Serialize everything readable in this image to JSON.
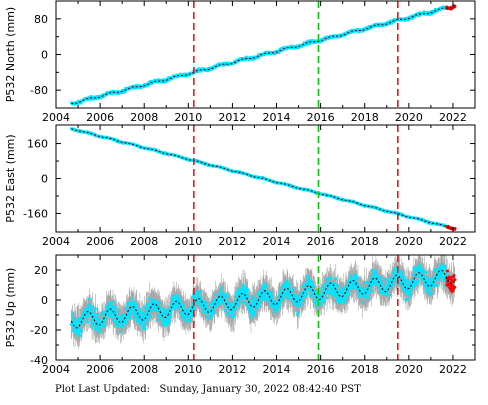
{
  "footer": {
    "label": "Plot Last Updated:",
    "timestamp": "Sunday, January 30, 2022 08:42:40 PST"
  },
  "colors": {
    "data": "#00e5ff",
    "error_bars": "#a8a8a8",
    "model": "#000000",
    "offset_line_red": "#ff0000",
    "offset_line_green": "#00cc00",
    "recent_points": "#ff0000"
  },
  "chart_data": [
    {
      "type": "scatter",
      "station": "P532",
      "ylabel": "P532 North (mm)",
      "xlim": [
        2004,
        2023
      ],
      "ylim": [
        -120,
        120
      ],
      "xticks": [
        2004,
        2006,
        2008,
        2010,
        2012,
        2014,
        2016,
        2018,
        2020,
        2022
      ],
      "yticks": [
        -80,
        0,
        80
      ],
      "grid": false,
      "start": 2004.7,
      "end": 2022.08,
      "trend": [
        [
          2004.7,
          -110
        ],
        [
          2022.08,
          109
        ]
      ],
      "seasonal_amplitude": 2,
      "noise": 3,
      "error_bar": 0,
      "vlines": [
        {
          "x": 2010.25,
          "color": "red"
        },
        {
          "x": 2015.9,
          "color": "green"
        },
        {
          "x": 2019.5,
          "color": "red"
        }
      ]
    },
    {
      "type": "scatter",
      "station": "P532",
      "ylabel": "P532 East (mm)",
      "xlim": [
        2004,
        2023
      ],
      "ylim": [
        -245,
        245
      ],
      "xticks": [
        2004,
        2006,
        2008,
        2010,
        2012,
        2014,
        2016,
        2018,
        2020,
        2022
      ],
      "yticks": [
        -160,
        0,
        160
      ],
      "grid": false,
      "start": 2004.7,
      "end": 2022.08,
      "trend": [
        [
          2004.7,
          228
        ],
        [
          2022.08,
          -230
        ]
      ],
      "seasonal_amplitude": 2,
      "noise": 3,
      "error_bar": 0,
      "vlines": [
        {
          "x": 2010.25,
          "color": "red"
        },
        {
          "x": 2015.9,
          "color": "green"
        },
        {
          "x": 2019.5,
          "color": "red"
        }
      ]
    },
    {
      "type": "scatter",
      "station": "P532",
      "ylabel": "P532 Up (mm)",
      "xlim": [
        2004,
        2023
      ],
      "ylim": [
        -40,
        30
      ],
      "xticks": [
        2004,
        2006,
        2008,
        2010,
        2012,
        2014,
        2016,
        2018,
        2020,
        2022
      ],
      "yticks": [
        -40,
        -20,
        0,
        20
      ],
      "grid": false,
      "start": 2004.7,
      "end": 2022.08,
      "trend": [
        [
          2004.7,
          -14
        ],
        [
          2022.08,
          16
        ]
      ],
      "seasonal_amplitude": 5,
      "noise": 6,
      "error_bar": 9,
      "vlines": [
        {
          "x": 2010.25,
          "color": "red"
        },
        {
          "x": 2015.9,
          "color": "green"
        },
        {
          "x": 2019.5,
          "color": "red"
        }
      ]
    }
  ]
}
